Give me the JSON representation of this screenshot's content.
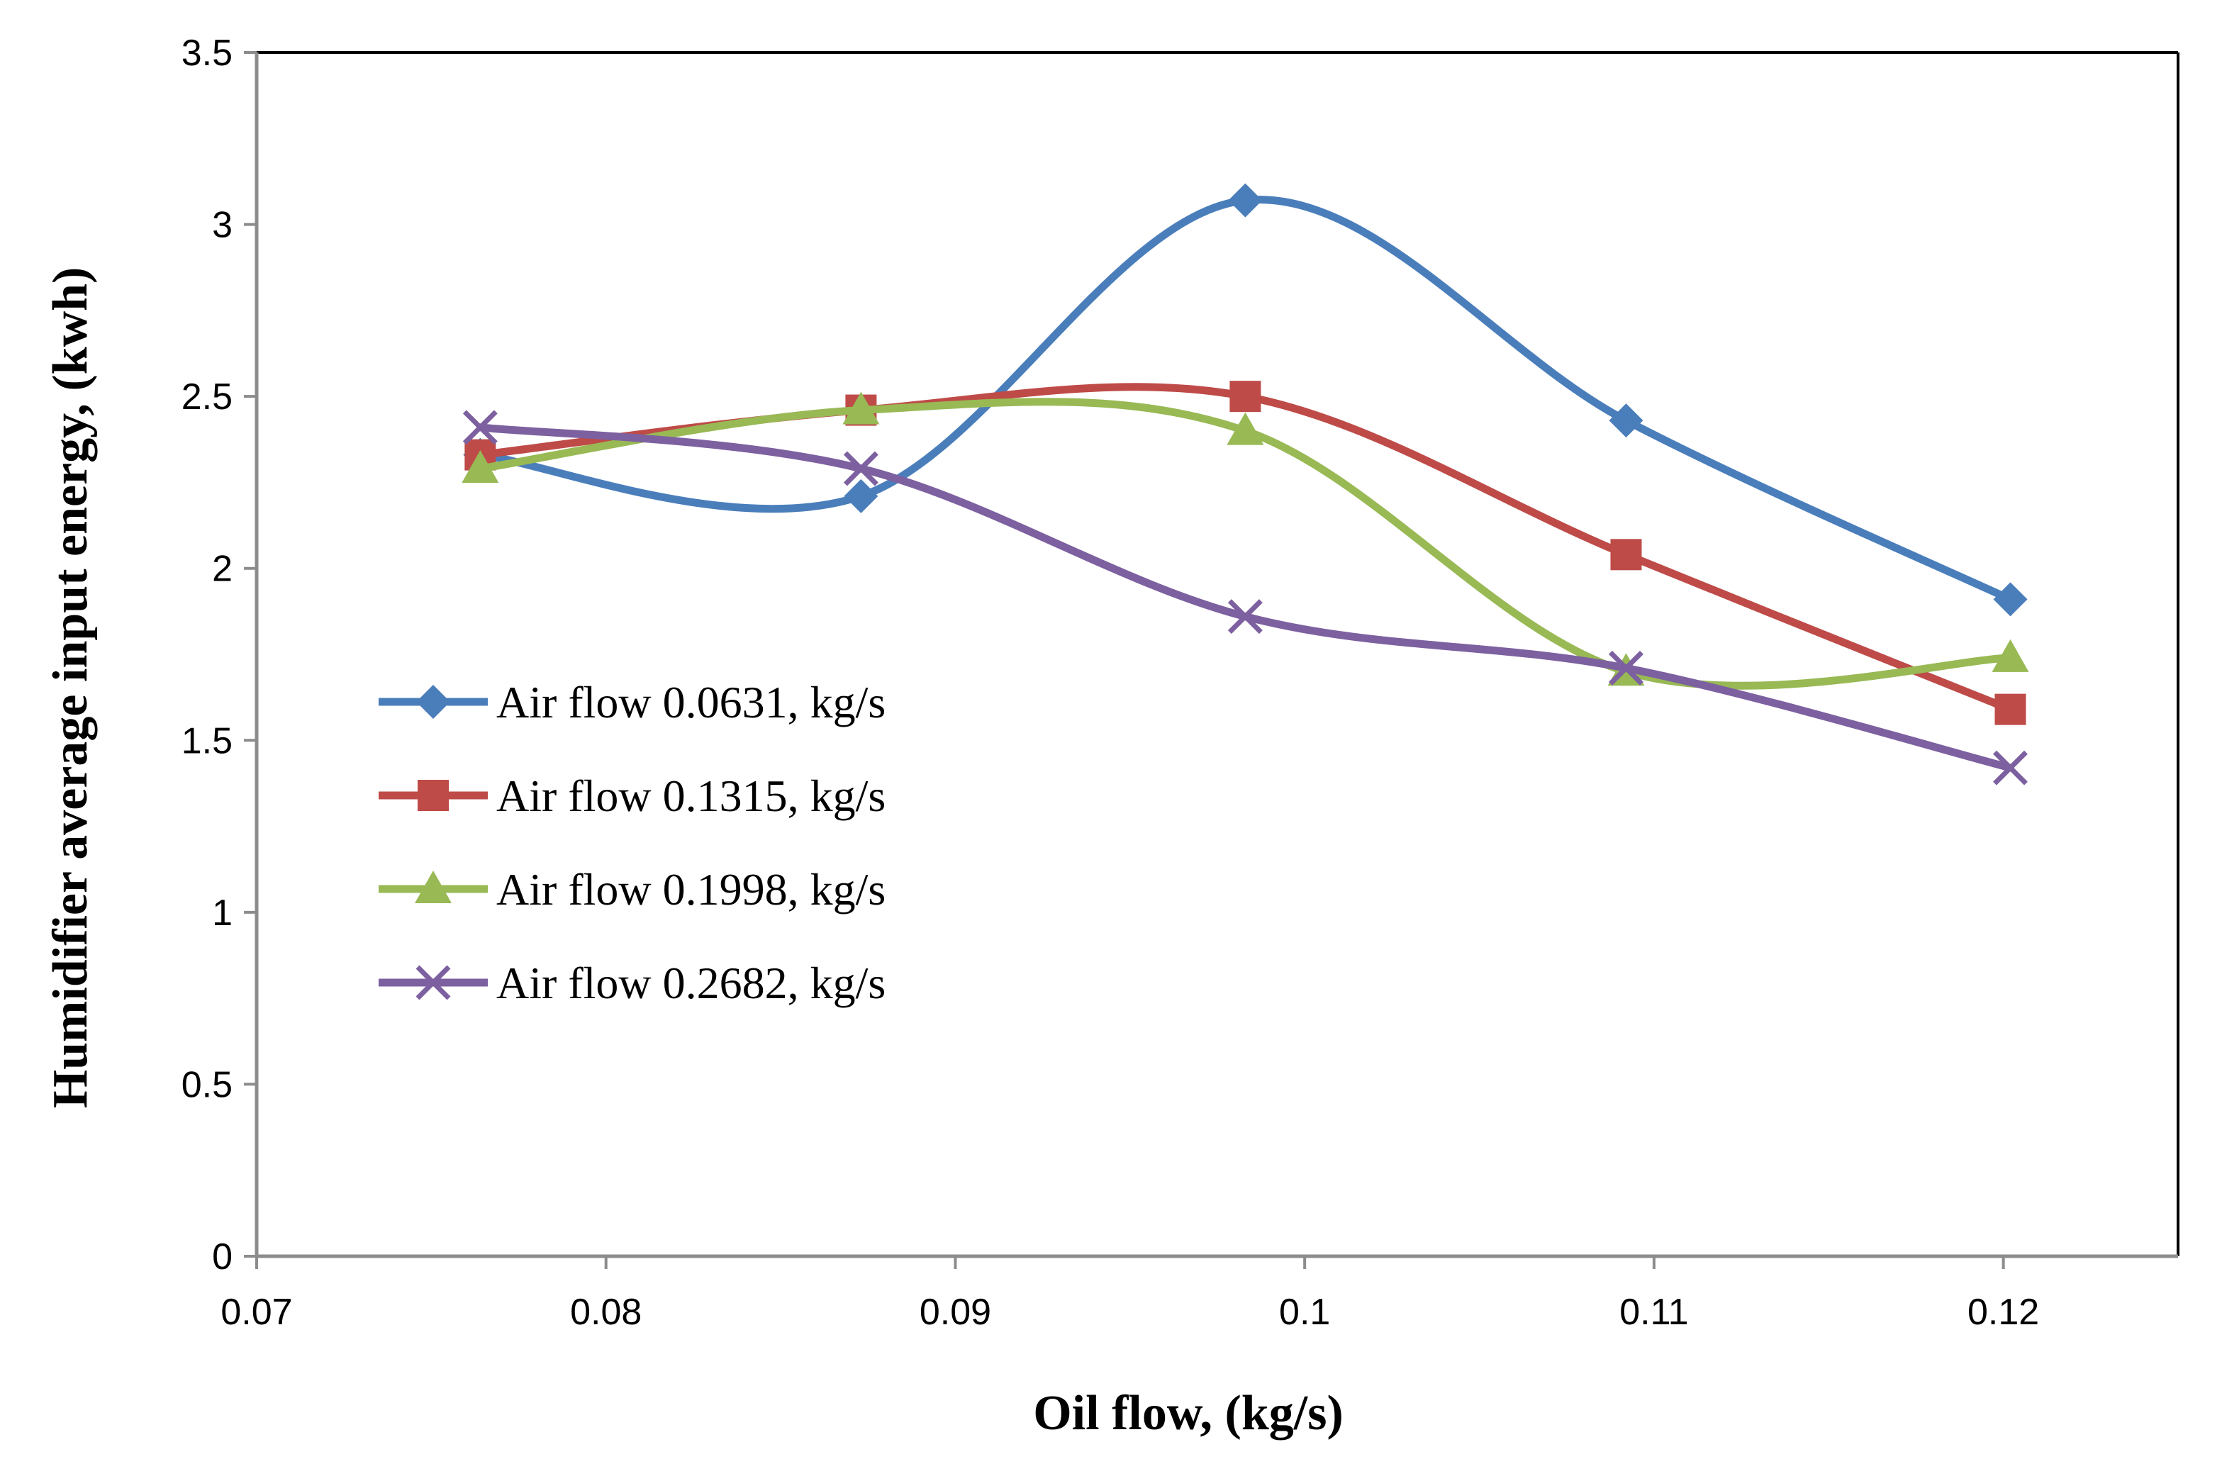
{
  "chart_data": {
    "type": "line",
    "smooth": true,
    "xlabel": "Oil flow, (kg/s)",
    "ylabel": "Humidifier average input energy, (kwh)",
    "xlim": [
      0.07,
      0.125
    ],
    "ylim": [
      0,
      3.5
    ],
    "xticks": [
      0.07,
      0.08,
      0.09,
      0.1,
      0.11,
      0.12
    ],
    "xtick_labels": [
      "0.07",
      "0.08",
      "0.09",
      "0.1",
      "0.11",
      "0.12"
    ],
    "yticks": [
      0,
      0.5,
      1,
      1.5,
      2,
      2.5,
      3,
      3.5
    ],
    "ytick_labels": [
      "0",
      "0.5",
      "1",
      "1.5",
      "2",
      "2.5",
      "3",
      "3.5"
    ],
    "legend_position": "middle-left",
    "series": [
      {
        "name": "Air flow 0.0631, kg/s",
        "color": "#4a7ebb",
        "marker": "diamond",
        "x": [
          0.0764,
          0.0873,
          0.0983,
          0.1092,
          0.1202
        ],
        "y": [
          2.33,
          2.21,
          3.07,
          2.43,
          1.91
        ]
      },
      {
        "name": "Air flow 0.1315, kg/s",
        "color": "#be4b48",
        "marker": "square",
        "x": [
          0.0764,
          0.0873,
          0.0983,
          0.1092,
          0.1202
        ],
        "y": [
          2.33,
          2.46,
          2.5,
          2.04,
          1.59
        ]
      },
      {
        "name": "Air flow 0.1998, kg/s",
        "color": "#98b954",
        "marker": "triangle",
        "x": [
          0.0764,
          0.0873,
          0.0983,
          0.1092,
          0.1202
        ],
        "y": [
          2.29,
          2.46,
          2.4,
          1.7,
          1.74
        ]
      },
      {
        "name": "Air flow 0.2682, kg/s",
        "color": "#7d60a0",
        "marker": "x",
        "x": [
          0.0764,
          0.0873,
          0.0983,
          0.1092,
          0.1202
        ],
        "y": [
          2.41,
          2.29,
          1.86,
          1.71,
          1.42
        ]
      }
    ]
  }
}
